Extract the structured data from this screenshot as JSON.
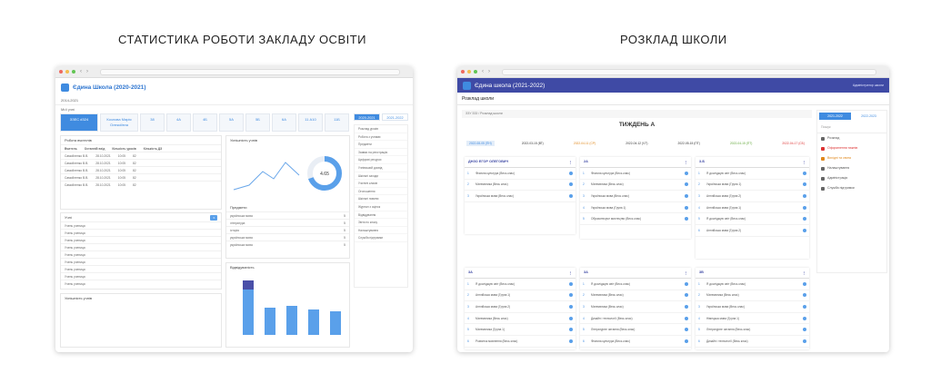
{
  "left": {
    "heading": "СТАТИСТИКА РОБОТИ ЗАКЛАДУ ОСВІТИ",
    "app_title": "Єдина Школа (2020-2021)",
    "breadcrumb": "2014-2021",
    "sub": "Мої учні",
    "tiles": [
      "ЗЗЕС #324",
      "Козлова Марія Олексіївна",
      "38",
      "4А",
      "4Б",
      "5А",
      "5Б",
      "6А",
      "11 А10",
      "11Б"
    ],
    "years": [
      "2020-2021",
      "2021-2022"
    ],
    "menu": [
      "Розклад уроків",
      "Робота з учнями",
      "Предмети",
      "Заявки на реєстрацію",
      "Цифрові ресурси",
      "Учнівський досвід",
      "Шкільні заходи",
      "Учителі класів",
      "Оголошення",
      "Шкільні новини",
      "Журнал з оцінок",
      "Відвідування",
      "Звіти по класу",
      "Налаштування",
      "Служба підтримки"
    ],
    "cards": {
      "teachers_title": "Робота вчителів",
      "teachers_cols": [
        "Вчитель",
        "Останній вхід",
        "Кількість уроків",
        "Кількість ДЗ"
      ],
      "teachers_rows": [
        [
          "Самойленко В.В.",
          "28.10.2021",
          "10:05",
          "82"
        ],
        [
          "Самойленко В.В.",
          "28.10.2021",
          "10:05",
          "82"
        ],
        [
          "Самойленко В.В.",
          "28.10.2021",
          "10:05",
          "82"
        ],
        [
          "Самойленко В.В.",
          "28.10.2021",
          "10:05",
          "82"
        ],
        [
          "Самойленко В.В.",
          "28.10.2021",
          "10:05",
          "82"
        ]
      ],
      "students_title": "Учні",
      "students_rows": [
        "Учень учениця",
        "Учень учениця",
        "Учень учениця",
        "Учень учениця",
        "Учень учениця",
        "Учень учениця",
        "Учень учениця",
        "Учень учениця",
        "Учень учениця"
      ],
      "students_activity_title": "Успішність учнів",
      "success_title": "Успішність учнів",
      "subjects_title": "Предмети",
      "subjects_rows": [
        [
          "українська мова",
          "5"
        ],
        [
          "література",
          "5"
        ],
        [
          "історія",
          "5"
        ],
        [
          "українська мова",
          "5"
        ],
        [
          "українська мова",
          "5"
        ]
      ],
      "attendance_title": "Відвідуваність",
      "donut_value": "4.65"
    }
  },
  "right": {
    "heading": "РОЗКЛАД ШКОЛИ",
    "app_title": "Єдина школа (2021-2022)",
    "user": "Адміністратор школи",
    "page_title": "Розклад школи",
    "breadcrumb": "ЗЗУ 333  /  Розклад школи",
    "week": "ТИЖДЕНЬ А",
    "days": [
      "2022-08-05 (ПН)",
      "2022-03-15 (ВТ)",
      "2022-04-11 (СР)",
      "2022-04-12 (ЧТ)",
      "2022-05-15 (ПТ)",
      "2022-04-15 (ПТ)",
      "2022-04-17 (СБ)"
    ],
    "years": [
      "2021-2022",
      "2022-2023"
    ],
    "search": "Пошук",
    "menu": [
      {
        "label": "Розклад",
        "tone": "default"
      },
      {
        "label": "Оформлення тижнів",
        "tone": "red"
      },
      {
        "label": "Вихідні та свята",
        "tone": "orange"
      },
      {
        "label": "Налаштування",
        "tone": "default"
      },
      {
        "label": "Адміністрація",
        "tone": "default"
      },
      {
        "label": "Служба підтримки",
        "tone": "default"
      }
    ],
    "classes": [
      {
        "name": "ДНЗО ЕГОР ОЛЕГОВИЧ",
        "lessons": [
          "Фізична культура (Весь клас)",
          "Математика (Весь клас)",
          "Українська мова (Весь клас)"
        ]
      },
      {
        "name": "2А",
        "lessons": [
          "Фізична культура (Весь клас)",
          "Математика (Весь клас)",
          "Українська мова (Весь клас)",
          "Українська мова (Група 1)",
          "Образотворче мистецтво (Весь клас)"
        ]
      },
      {
        "name": "3-Б",
        "lessons": [
          "Я досліджую світ (Весь клас)",
          "Українська мова (Група 1)",
          "Англійська мова (Група 2)",
          "Англійська мова (Група 1)",
          "Я досліджую світ (Весь клас)",
          "Англійська мова (Група 2)"
        ]
      },
      {
        "name": "3А",
        "lessons": [
          "Я досліджую світ (Весь клас)",
          "Англійська мова (Група 1)",
          "Англійська мова (Група 2)",
          "Математика (Весь клас)",
          "Математика (Група 1)",
          "Розвиток мовлення (Весь клас)"
        ]
      },
      {
        "name": "3А",
        "lessons": [
          "Я досліджую світ (Весь клас)",
          "Математика (Весь клас)",
          "Математика (Весь клас)",
          "Дизайн і технології (Весь клас)",
          "Літературне читання (Весь клас)",
          "Фізична культура (Весь клас)"
        ]
      },
      {
        "name": "3В",
        "lessons": [
          "Я досліджую світ (Весь клас)",
          "Математика (Весь клас)",
          "Українська мова (Весь клас)",
          "Німецька мова (Група 1)",
          "Літературне читання (Весь клас)",
          "Дизайн і технології (Весь клас)"
        ]
      }
    ]
  }
}
